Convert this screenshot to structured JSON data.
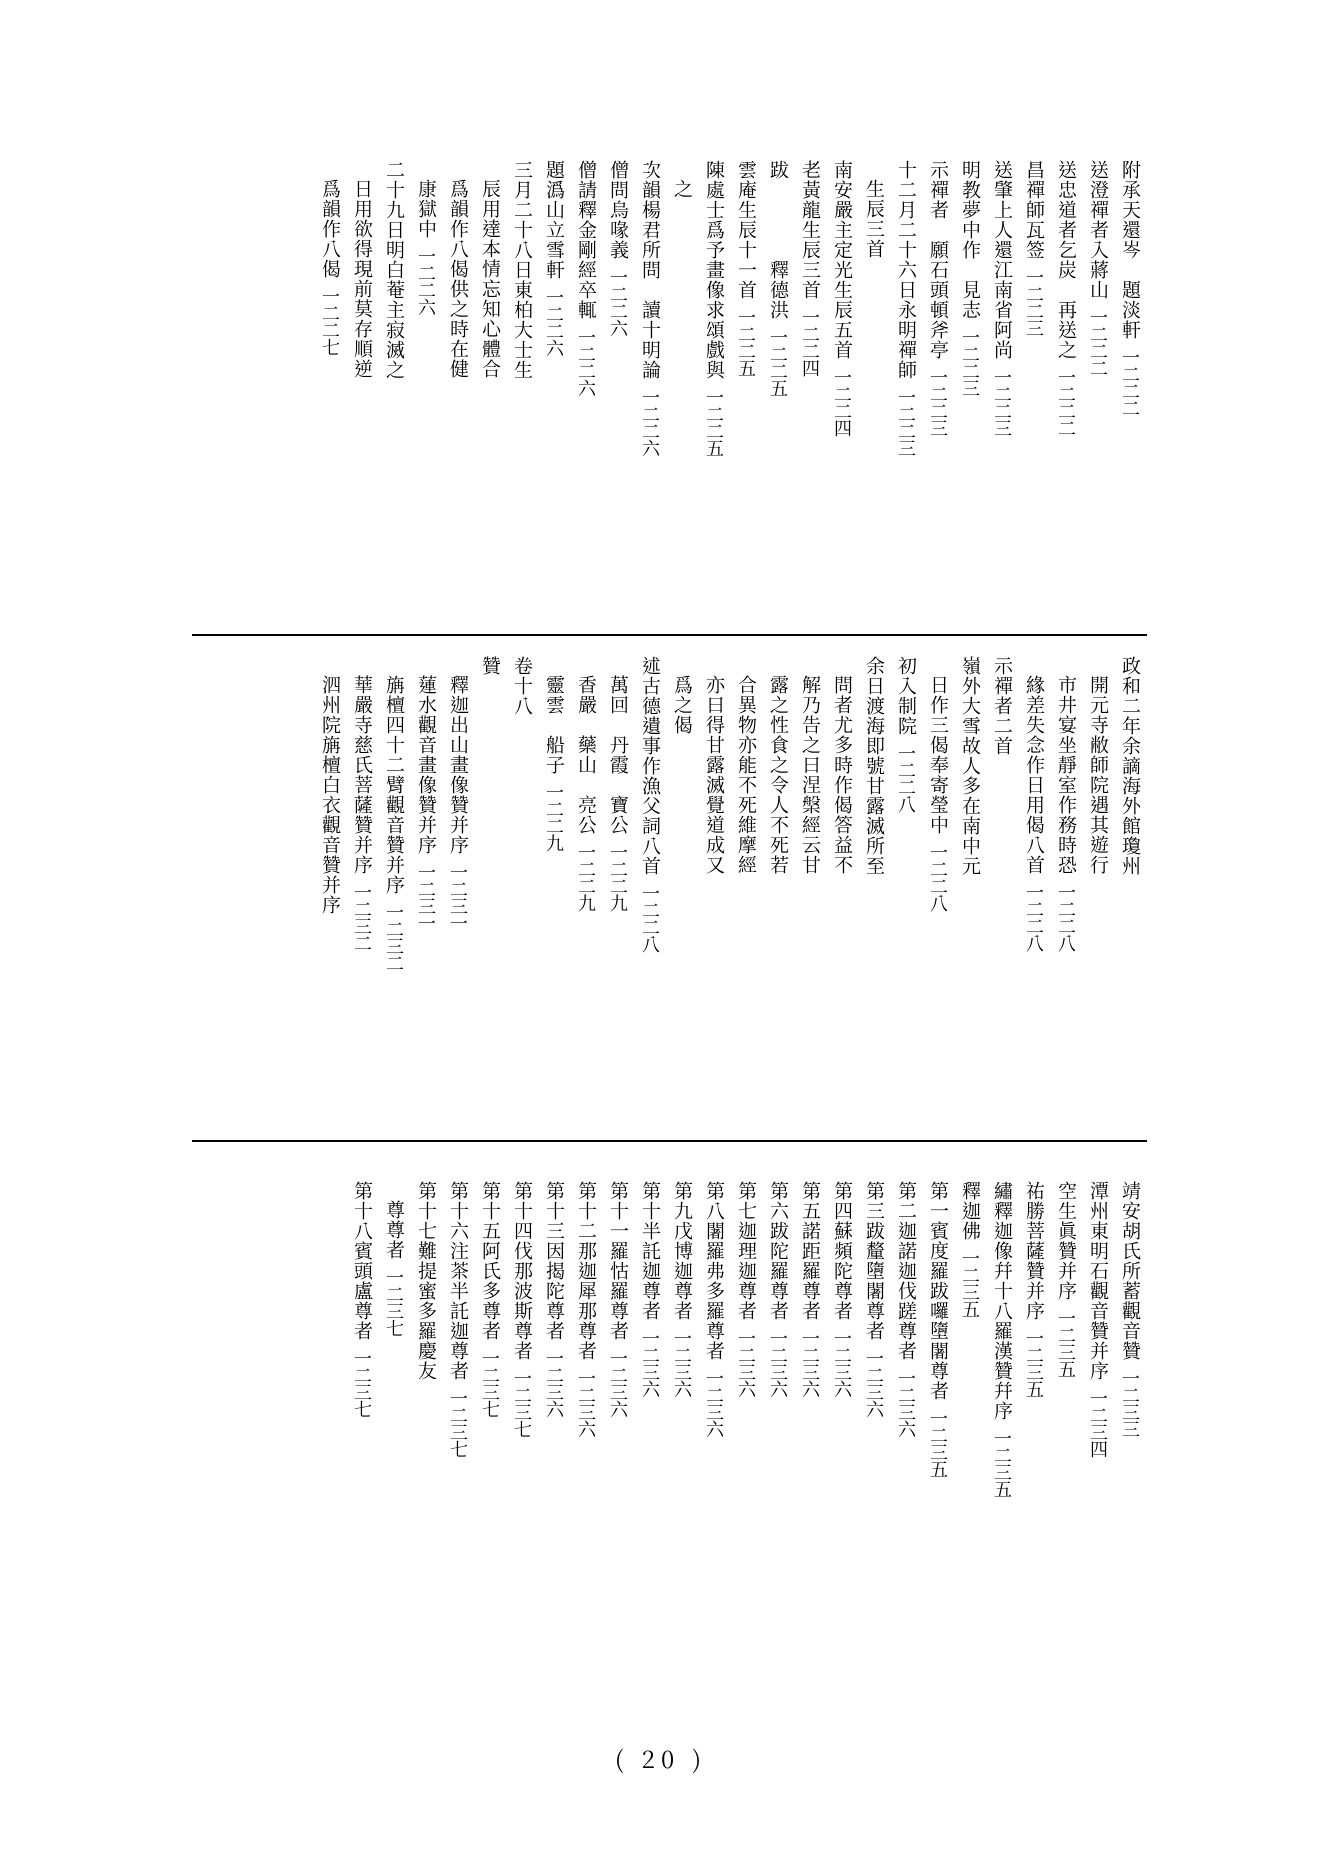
{
  "page_number": "( 20 )",
  "typography": {
    "title_fontsize": 19,
    "page_fontsize": 18,
    "text_color": "#000000",
    "background": "#ffffff",
    "rule_color": "#000000"
  },
  "sections": [
    {
      "entries": [
        {
          "title": "附承天還岑　題淡軒",
          "page": "一二二二",
          "indent": 0
        },
        {
          "title": "送澄禪者入蔣山",
          "page": "一二二二",
          "indent": 0
        },
        {
          "title": "送忠道者乞炭　再送之",
          "page": "一二二二",
          "indent": 0
        },
        {
          "title": "昌禪師瓦签",
          "page": "一二二三",
          "indent": 0
        },
        {
          "title": "送肇上人還江南省阿尚",
          "page": "一二二三",
          "indent": 0
        },
        {
          "title": "明教夢中作　見志",
          "page": "一二二三",
          "indent": 0
        },
        {
          "title": "示禪者　願石頭頓斧亭",
          "page": "一二二三",
          "indent": 0
        },
        {
          "title": "十二月二十六日永明禪師",
          "page": "一二二三",
          "indent": 0
        },
        {
          "title": "生辰三首",
          "page": "",
          "indent": 1
        },
        {
          "title": "南安嚴主定光生辰五首",
          "page": "一二二四",
          "indent": 0
        },
        {
          "title": "老黃龍生辰三首",
          "page": "一二二四",
          "indent": 0
        },
        {
          "title": "跋　　　　釋德洪",
          "page": "一二二五",
          "indent": 0
        },
        {
          "title": "雲庵生辰十一首",
          "page": "一二二五",
          "indent": 0
        },
        {
          "title": "陳處士爲予畫像求頌戲與",
          "page": "一二二五",
          "indent": 0
        },
        {
          "title": "之",
          "page": "",
          "indent": 1
        },
        {
          "title": "次韻楊君所問　讀十明論",
          "page": "一二二六",
          "indent": 0
        },
        {
          "title": "僧問烏喙義",
          "page": "一二二六",
          "indent": 0
        },
        {
          "title": "僧請釋金剛經卒輒",
          "page": "一二二六",
          "indent": 0
        },
        {
          "title": "題潙山立雪軒",
          "page": "一二二六",
          "indent": 0
        },
        {
          "title": "三月二十八日東柏大士生",
          "page": "",
          "indent": 0
        },
        {
          "title": "辰用達本情忘知心體合",
          "page": "",
          "indent": 1
        },
        {
          "title": "爲韻作八偈供之時在健",
          "page": "",
          "indent": 1
        },
        {
          "title": "康獄中",
          "page": "一二二六",
          "indent": 1
        },
        {
          "title": "二十九日明白菴主寂滅之",
          "page": "",
          "indent": 0
        },
        {
          "title": "日用欲得現前莫存順逆",
          "page": "",
          "indent": 1
        },
        {
          "title": "爲韻作八偈",
          "page": "一二二七",
          "indent": 1
        }
      ]
    },
    {
      "entries": [
        {
          "title": "政和二年余謫海外館瓊州",
          "page": "",
          "indent": 0
        },
        {
          "title": "開元寺敝師院遇其遊行",
          "page": "",
          "indent": 1
        },
        {
          "title": "市井宴坐靜室作務時恐",
          "page": "一二二八",
          "indent": 1
        },
        {
          "title": "緣差失念作日用偈八首",
          "page": "一二二八",
          "indent": 1
        },
        {
          "title": "示禪者二首",
          "page": "",
          "indent": 0
        },
        {
          "title": "嶺外大雪故人多在南中元",
          "page": "",
          "indent": 0
        },
        {
          "title": "日作三偈奉寄瑩中",
          "page": "一二二八",
          "indent": 1
        },
        {
          "title": "初入制院",
          "page": "一二二八",
          "indent": 0
        },
        {
          "title": "余日渡海即號甘露滅所至",
          "page": "",
          "indent": 0
        },
        {
          "title": "問者尤多時作偈答益不",
          "page": "",
          "indent": 1
        },
        {
          "title": "解乃告之曰涅槃經云甘",
          "page": "",
          "indent": 1
        },
        {
          "title": "露之性食之令人不死若",
          "page": "",
          "indent": 1
        },
        {
          "title": "合異物亦能不死維摩經",
          "page": "",
          "indent": 1
        },
        {
          "title": "亦曰得甘露滅覺道成又",
          "page": "",
          "indent": 1
        },
        {
          "title": "爲之偈",
          "page": "",
          "indent": 1
        },
        {
          "title": "述古德遺事作漁父詞八首",
          "page": "一二二八",
          "indent": 0
        },
        {
          "title": "萬回　丹霞　寶公",
          "page": "一二二九",
          "indent": 1
        },
        {
          "title": "香嚴　藥山　亮公",
          "page": "一二二九",
          "indent": 1
        },
        {
          "title": "靈雲　船子",
          "page": "一二二九",
          "indent": 1
        },
        {
          "title": "卷十八",
          "page": "",
          "indent": 0,
          "section_head": true
        },
        {
          "title": "贊",
          "page": "",
          "indent": 0
        },
        {
          "title": "釋迦出山畫像贊并序",
          "page": "一二三一",
          "indent": 1
        },
        {
          "title": "蓮水觀音畫像贊并序",
          "page": "一二三一",
          "indent": 1
        },
        {
          "title": "㫋檀四十二臂觀音贊并序",
          "page": "一二三二",
          "indent": 1
        },
        {
          "title": "華嚴寺慈氏菩薩贊并序",
          "page": "一二三二",
          "indent": 1
        },
        {
          "title": "泗州院㫋檀白衣觀音贊并序",
          "page": "",
          "indent": 1
        }
      ]
    },
    {
      "entries": [
        {
          "title": "靖安胡氏所蓄觀音贊",
          "page": "一二三三",
          "indent": 1
        },
        {
          "title": "潭州東明石觀音贊并序",
          "page": "一二三四",
          "indent": 1
        },
        {
          "title": "空生眞贊并序",
          "page": "一二三五",
          "indent": 1
        },
        {
          "title": "祐勝菩薩贊并序",
          "page": "一二三五",
          "indent": 1
        },
        {
          "title": "繡釋迦像幷十八羅漢贊幷序",
          "page": "一二三五",
          "indent": 1
        },
        {
          "title": "釋迦佛",
          "page": "一二三五",
          "indent": 1
        },
        {
          "title": "第一賓度羅跋囉墮闍尊者",
          "page": "一二三五",
          "indent": 1
        },
        {
          "title": "第二迦諾迦伐蹉尊者",
          "page": "一二三六",
          "indent": 1
        },
        {
          "title": "第三跋釐墮闍尊者",
          "page": "一二三六",
          "indent": 1
        },
        {
          "title": "第四蘇頻陀尊者",
          "page": "一二三六",
          "indent": 1
        },
        {
          "title": "第五諾距羅尊者",
          "page": "一二三六",
          "indent": 1
        },
        {
          "title": "第六跋陀羅尊者",
          "page": "一二三六",
          "indent": 1
        },
        {
          "title": "第七迦理迦尊者",
          "page": "一二三六",
          "indent": 1
        },
        {
          "title": "第八闍羅弗多羅尊者",
          "page": "一二三六",
          "indent": 1
        },
        {
          "title": "第九戊博迦尊者",
          "page": "一二三六",
          "indent": 1
        },
        {
          "title": "第十半託迦尊者",
          "page": "一二三六",
          "indent": 1
        },
        {
          "title": "第十一羅怙羅尊者",
          "page": "一二三六",
          "indent": 1
        },
        {
          "title": "第十二那迦犀那尊者",
          "page": "一二三六",
          "indent": 1
        },
        {
          "title": "第十三因揭陀尊者",
          "page": "一二三六",
          "indent": 1
        },
        {
          "title": "第十四伐那波斯尊者",
          "page": "一二三七",
          "indent": 1
        },
        {
          "title": "第十五阿氏多尊者",
          "page": "一二三七",
          "indent": 1
        },
        {
          "title": "第十六注茶半託迦尊者",
          "page": "一二三七",
          "indent": 1
        },
        {
          "title": "第十七難提蜜多羅慶友",
          "page": "",
          "indent": 1
        },
        {
          "title": "尊尊者",
          "page": "一二三七",
          "indent": 2
        },
        {
          "title": "第十八賓頭盧尊者",
          "page": "一二三七",
          "indent": 1
        }
      ]
    }
  ]
}
